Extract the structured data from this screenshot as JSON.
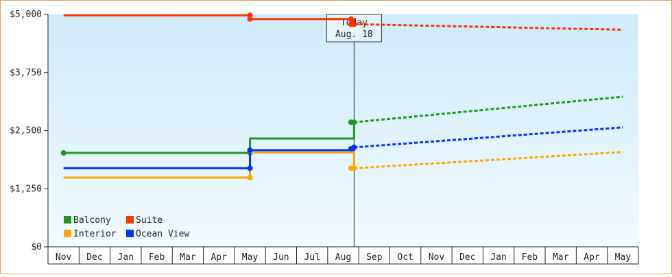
{
  "chart_data": {
    "type": "line",
    "y_ticks": [
      "$0",
      "$1,250",
      "$2,500",
      "$3,750",
      "$5,000"
    ],
    "ylim": [
      0,
      5000
    ],
    "months": [
      "Nov",
      "Dec",
      "Jan",
      "Feb",
      "Mar",
      "Apr",
      "May",
      "Jun",
      "Jul",
      "Aug",
      "Sep",
      "Oct",
      "Nov",
      "Dec",
      "Jan",
      "Feb",
      "Mar",
      "Apr",
      "May"
    ],
    "today_label": [
      "Today",
      "Aug. 18"
    ],
    "today_index": 9.35,
    "series": [
      {
        "name": "Balcony",
        "color": "#1a9a1a",
        "history": [
          [
            0,
            2020
          ],
          [
            6,
            2020
          ],
          [
            6,
            2330
          ],
          [
            9.35,
            2330
          ],
          [
            9.35,
            2680
          ]
        ],
        "markers": [
          [
            0,
            2020
          ],
          [
            6,
            2020
          ],
          [
            6,
            2050
          ],
          [
            9.25,
            2680
          ],
          [
            9.35,
            2680
          ]
        ],
        "forecast": [
          [
            9.35,
            2680
          ],
          [
            18,
            3230
          ]
        ]
      },
      {
        "name": "Suite",
        "color": "#ff3300",
        "history": [
          [
            0,
            4980
          ],
          [
            6,
            4980
          ],
          [
            6,
            4900
          ],
          [
            9.35,
            4900
          ],
          [
            9.35,
            4790
          ]
        ],
        "markers": [
          [
            6,
            4980
          ],
          [
            6,
            4900
          ],
          [
            9.25,
            4900
          ],
          [
            9.25,
            4790
          ],
          [
            9.35,
            4790
          ]
        ],
        "forecast": [
          [
            9.35,
            4790
          ],
          [
            18,
            4670
          ]
        ]
      },
      {
        "name": "Interior",
        "color": "#ffa500",
        "history": [
          [
            0,
            1490
          ],
          [
            6,
            1490
          ],
          [
            6,
            2030
          ],
          [
            9.35,
            2030
          ],
          [
            9.35,
            1690
          ]
        ],
        "markers": [
          [
            6,
            1490
          ],
          [
            9.25,
            1690
          ],
          [
            9.35,
            1690
          ]
        ],
        "forecast": [
          [
            9.35,
            1690
          ],
          [
            18,
            2040
          ]
        ]
      },
      {
        "name": "Ocean View",
        "color": "#0033ff",
        "history": [
          [
            0,
            1690
          ],
          [
            6,
            1690
          ],
          [
            6,
            2080
          ],
          [
            9.35,
            2080
          ],
          [
            9.35,
            2140
          ]
        ],
        "markers": [
          [
            6,
            1690
          ],
          [
            6,
            2080
          ],
          [
            9.25,
            2110
          ],
          [
            9.35,
            2140
          ]
        ],
        "forecast": [
          [
            9.35,
            2140
          ],
          [
            18,
            2570
          ]
        ]
      }
    ],
    "legend_order": [
      "Balcony",
      "Suite",
      "Interior",
      "Ocean View"
    ],
    "legend_placement": "bottom-left",
    "grid": false
  }
}
